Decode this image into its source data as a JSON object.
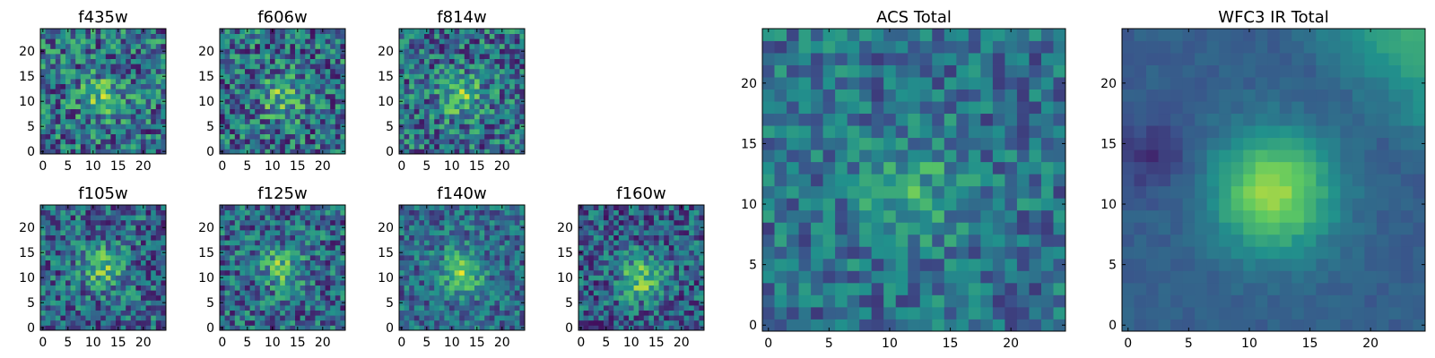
{
  "figure": {
    "type": "image-grid",
    "colormap": "viridis",
    "colormap_stops": [
      "#440154",
      "#3b528b",
      "#21918c",
      "#5ec962",
      "#fde725"
    ]
  },
  "chart_data": [
    {
      "type": "heatmap",
      "title": "f435w",
      "grid": 25,
      "xlim": [
        0,
        24
      ],
      "ylim": [
        0,
        24
      ],
      "xticks": [
        0,
        5,
        10,
        15,
        20
      ],
      "yticks": [
        0,
        5,
        10,
        15,
        20
      ],
      "xtick_labels": [
        "0",
        "5",
        "10",
        "15",
        "20"
      ],
      "ytick_labels": [
        "0",
        "5",
        "10",
        "15",
        "20"
      ],
      "values_description_center": [
        12,
        11
      ],
      "peak": 0.62,
      "noise": 0.32,
      "baseline": 0.62,
      "seed": 11
    },
    {
      "type": "heatmap",
      "title": "f606w",
      "grid": 25,
      "xlim": [
        0,
        24
      ],
      "ylim": [
        0,
        24
      ],
      "xticks": [
        0,
        5,
        10,
        15,
        20
      ],
      "yticks": [
        0,
        5,
        10,
        15,
        20
      ],
      "xtick_labels": [
        "0",
        "5",
        "10",
        "15",
        "20"
      ],
      "ytick_labels": [
        "0",
        "5",
        "10",
        "15",
        "20"
      ],
      "values_description_center": [
        12,
        11
      ],
      "peak": 0.64,
      "noise": 0.32,
      "baseline": 0.6,
      "seed": 23
    },
    {
      "type": "heatmap",
      "title": "f814w",
      "grid": 25,
      "xlim": [
        0,
        24
      ],
      "ylim": [
        0,
        24
      ],
      "xticks": [
        0,
        5,
        10,
        15,
        20
      ],
      "yticks": [
        0,
        5,
        10,
        15,
        20
      ],
      "xtick_labels": [
        "0",
        "5",
        "10",
        "15",
        "20"
      ],
      "ytick_labels": [
        "0",
        "5",
        "10",
        "15",
        "20"
      ],
      "values_description_center": [
        12,
        11
      ],
      "peak": 0.68,
      "noise": 0.3,
      "baseline": 0.6,
      "seed": 37
    },
    {
      "type": "heatmap",
      "title": "f105w",
      "grid": 25,
      "xlim": [
        0,
        24
      ],
      "ylim": [
        0,
        24
      ],
      "xticks": [
        0,
        5,
        10,
        15,
        20
      ],
      "yticks": [
        0,
        5,
        10,
        15,
        20
      ],
      "xtick_labels": [
        "0",
        "5",
        "10",
        "15",
        "20"
      ],
      "ytick_labels": [
        "0",
        "5",
        "10",
        "15",
        "20"
      ],
      "values_description_center": [
        12,
        12
      ],
      "peak": 0.72,
      "noise": 0.28,
      "baseline": 0.55,
      "seed": 53
    },
    {
      "type": "heatmap",
      "title": "f125w",
      "grid": 25,
      "xlim": [
        0,
        24
      ],
      "ylim": [
        0,
        24
      ],
      "xticks": [
        0,
        5,
        10,
        15,
        20
      ],
      "yticks": [
        0,
        5,
        10,
        15,
        20
      ],
      "xtick_labels": [
        "0",
        "5",
        "10",
        "15",
        "20"
      ],
      "ytick_labels": [
        "0",
        "5",
        "10",
        "15",
        "20"
      ],
      "values_description_center": [
        12,
        12
      ],
      "peak": 0.7,
      "noise": 0.28,
      "baseline": 0.56,
      "seed": 71
    },
    {
      "type": "heatmap",
      "title": "f140w",
      "grid": 25,
      "xlim": [
        0,
        24
      ],
      "ylim": [
        0,
        24
      ],
      "xticks": [
        0,
        5,
        10,
        15,
        20
      ],
      "yticks": [
        0,
        5,
        10,
        15,
        20
      ],
      "xtick_labels": [
        "0",
        "5",
        "10",
        "15",
        "20"
      ],
      "ytick_labels": [
        "0",
        "5",
        "10",
        "15",
        "20"
      ],
      "values_description_center": [
        12,
        11
      ],
      "peak": 0.82,
      "noise": 0.22,
      "baseline": 0.58,
      "seed": 89
    },
    {
      "type": "heatmap",
      "title": "f160w",
      "grid": 25,
      "xlim": [
        0,
        24
      ],
      "ylim": [
        0,
        24
      ],
      "xticks": [
        0,
        5,
        10,
        15,
        20
      ],
      "yticks": [
        0,
        5,
        10,
        15,
        20
      ],
      "xtick_labels": [
        "0",
        "5",
        "10",
        "15",
        "20"
      ],
      "ytick_labels": [
        "0",
        "5",
        "10",
        "15",
        "20"
      ],
      "values_description_center": [
        12,
        10
      ],
      "peak": 0.88,
      "noise": 0.26,
      "baseline": 0.5,
      "seed": 97
    },
    {
      "type": "heatmap",
      "title": "ACS Total",
      "grid": 25,
      "xlim": [
        0,
        24
      ],
      "ylim": [
        0,
        24
      ],
      "xticks": [
        0,
        5,
        10,
        15,
        20
      ],
      "yticks": [
        0,
        5,
        10,
        15,
        20
      ],
      "xtick_labels": [
        "0",
        "5",
        "10",
        "15",
        "20"
      ],
      "ytick_labels": [
        "0",
        "5",
        "10",
        "15",
        "20"
      ],
      "values_description_center": [
        12,
        11
      ],
      "peak": 0.45,
      "noise": 0.2,
      "baseline": 0.62,
      "seed": 131
    },
    {
      "type": "heatmap",
      "title": "WFC3 IR Total",
      "grid": 25,
      "xlim": [
        0,
        24
      ],
      "ylim": [
        0,
        24
      ],
      "xticks": [
        0,
        5,
        10,
        15,
        20
      ],
      "yticks": [
        0,
        5,
        10,
        15,
        20
      ],
      "xtick_labels": [
        "0",
        "5",
        "10",
        "15",
        "20"
      ],
      "ytick_labels": [
        "0",
        "5",
        "10",
        "15",
        "20"
      ],
      "values_description_center": [
        12,
        11
      ],
      "peak": 0.75,
      "noise": 0.08,
      "baseline": 0.45,
      "seed": 151
    }
  ]
}
